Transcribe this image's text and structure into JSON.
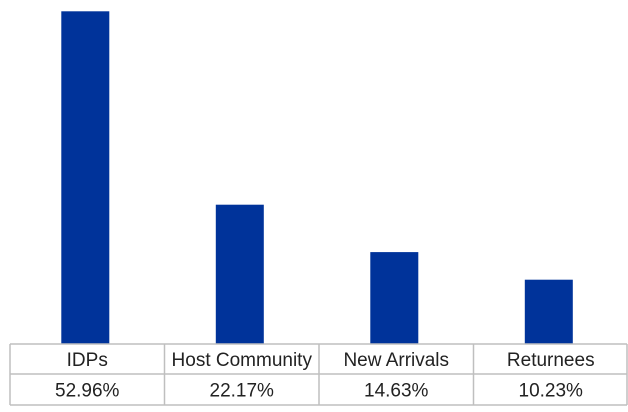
{
  "chart_data": {
    "type": "bar",
    "title": "",
    "xlabel": "",
    "ylabel": "",
    "categories": [
      "IDPs",
      "Host Community",
      "New Arrivals",
      "Returnees"
    ],
    "values": [
      52.96,
      22.17,
      14.63,
      10.23
    ],
    "value_labels": [
      "52.96%",
      "22.17%",
      "14.63%",
      "10.23%"
    ],
    "ylim": [
      0,
      53
    ],
    "grid": false,
    "legend": "none",
    "colors": {
      "bar": "#00339a",
      "table_border": "#bfbfbf",
      "text": "#222222"
    }
  }
}
